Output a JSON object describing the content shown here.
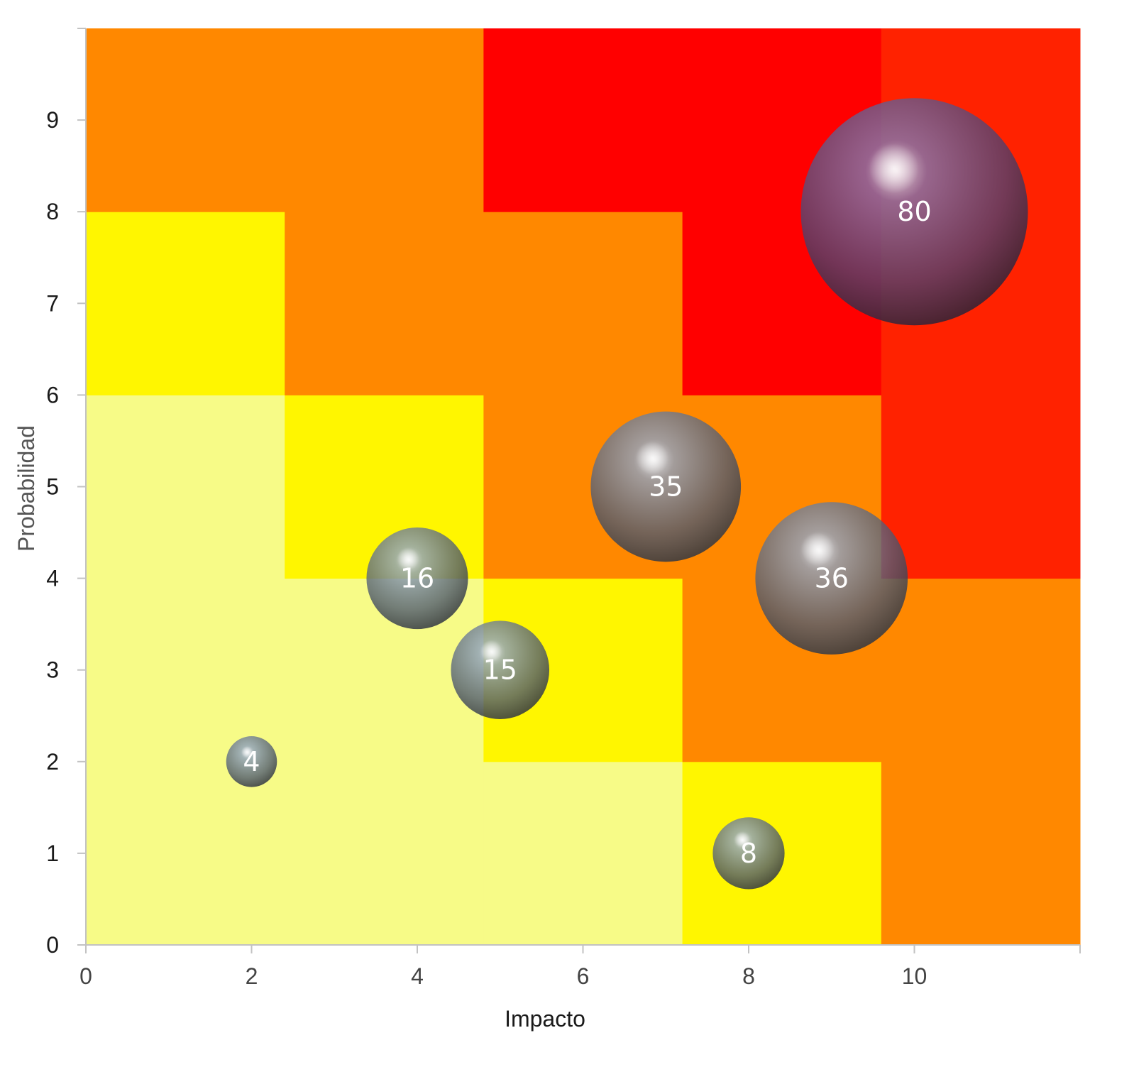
{
  "chart_data": {
    "type": "bubble",
    "xlabel": "Impacto",
    "ylabel": "Probabilidad",
    "xlim": [
      0,
      12
    ],
    "ylim": [
      0,
      10
    ],
    "x_ticks": [
      0,
      2,
      4,
      6,
      8,
      10
    ],
    "y_ticks": [
      0,
      1,
      2,
      3,
      4,
      5,
      6,
      7,
      8,
      9
    ],
    "grid": false,
    "legend": "none",
    "background_zones": {
      "colors": {
        "light_yellow": "#F7FB87",
        "yellow": "#FFF600",
        "orange": "#FF8800",
        "red": "#FF0000",
        "red_orange": "#FF2200"
      },
      "column_x_edges": [
        0,
        2.4,
        4.8,
        7.2,
        9.6,
        12
      ],
      "row_y_edges": [
        0,
        2,
        4,
        6,
        8,
        10
      ],
      "grid_bottom_to_top": [
        [
          "light_yellow",
          "light_yellow",
          "light_yellow",
          "yellow",
          "orange"
        ],
        [
          "light_yellow",
          "light_yellow",
          "yellow",
          "orange",
          "orange"
        ],
        [
          "light_yellow",
          "yellow",
          "orange",
          "orange",
          "red_orange"
        ],
        [
          "yellow",
          "orange",
          "orange",
          "red",
          "red_orange"
        ],
        [
          "orange",
          "orange",
          "red",
          "red",
          "red_orange"
        ]
      ]
    },
    "bubbles": [
      {
        "x": 2,
        "y": 2,
        "size": 4,
        "label": "4"
      },
      {
        "x": 4,
        "y": 4,
        "size": 16,
        "label": "16"
      },
      {
        "x": 5,
        "y": 3,
        "size": 15,
        "label": "15"
      },
      {
        "x": 7,
        "y": 5,
        "size": 35,
        "label": "35"
      },
      {
        "x": 9,
        "y": 4,
        "size": 36,
        "label": "36"
      },
      {
        "x": 8,
        "y": 1,
        "size": 8,
        "label": "8"
      },
      {
        "x": 10,
        "y": 8,
        "size": 80,
        "label": "80"
      }
    ]
  }
}
